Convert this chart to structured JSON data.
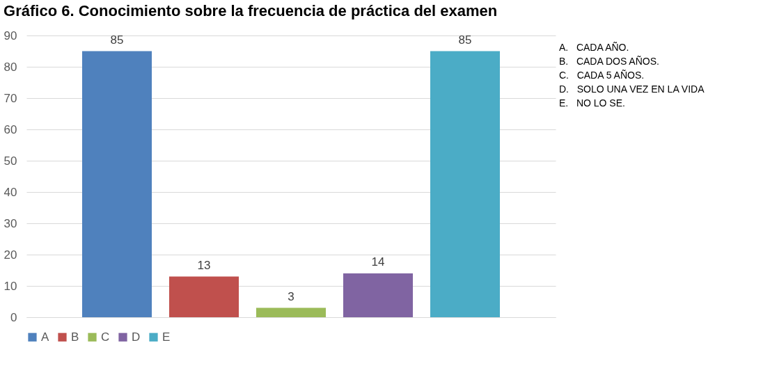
{
  "chart_data": {
    "type": "bar",
    "title": "Gráfico 6. Conocimiento sobre la frecuencia de práctica del examen",
    "categories": [
      null
    ],
    "series": [
      {
        "name": "A",
        "color": "#4f81bd",
        "values": [
          85
        ]
      },
      {
        "name": "B",
        "color": "#c0504d",
        "values": [
          13
        ]
      },
      {
        "name": "C",
        "color": "#9bbb59",
        "values": [
          3
        ]
      },
      {
        "name": "D",
        "color": "#8064a2",
        "values": [
          14
        ]
      },
      {
        "name": "E",
        "color": "#4bacc6",
        "values": [
          85
        ]
      }
    ],
    "ylim": [
      0,
      90
    ],
    "yticks": [
      0,
      10,
      20,
      30,
      40,
      50,
      60,
      70,
      80,
      90
    ],
    "grid": "y",
    "legend": "bottom",
    "data_labels": true,
    "annotations": [
      "A.   CADA AÑO.",
      "B.   CADA DOS AÑOS.",
      "C.   CADA 5 AÑOS.",
      "D.   SOLO UNA VEZ EN LA VIDA",
      "E.   NO LO SE."
    ]
  }
}
